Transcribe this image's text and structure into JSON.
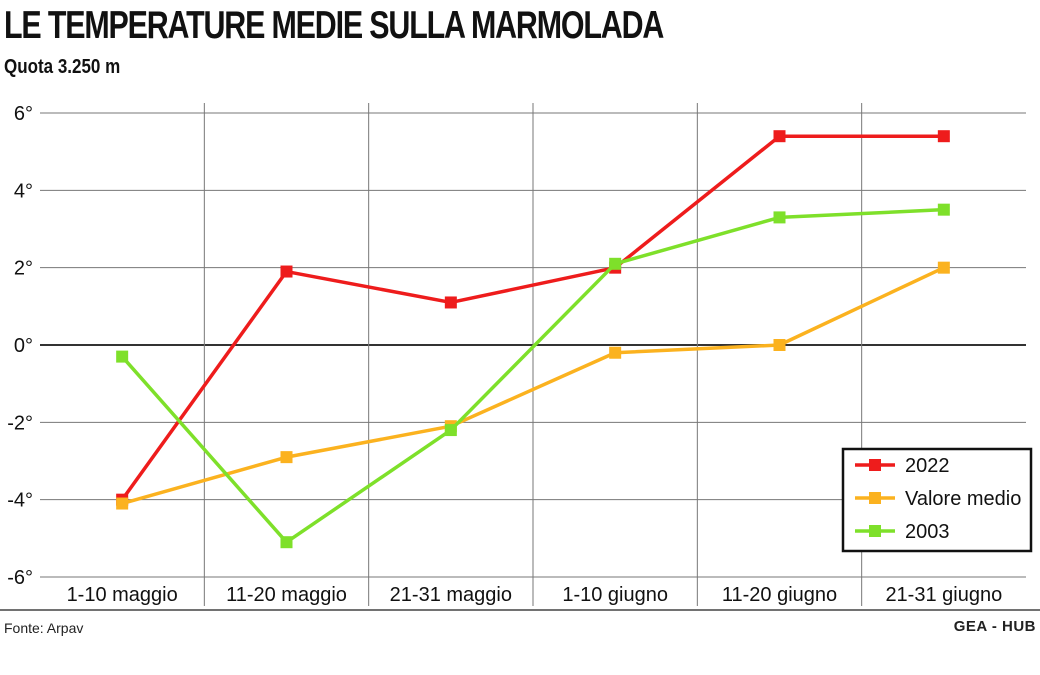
{
  "chart_data": {
    "type": "line",
    "title": "LE TEMPERATURE MEDIE SULLA MARMOLADA",
    "subtitle": "Quota 3.250 m",
    "categories": [
      "1-10 maggio",
      "11-20 maggio",
      "21-31 maggio",
      "1-10 giugno",
      "11-20 giugno",
      "21-31 giugno"
    ],
    "yticks": [
      "6°",
      "4°",
      "2°",
      "0°",
      "-2°",
      "-4°",
      "-6°"
    ],
    "ylim": [
      -6,
      6
    ],
    "grid": true,
    "legend_position": "bottom-right",
    "series": [
      {
        "name": "2022",
        "color": "#ee1c1c",
        "values": [
          -4.0,
          1.9,
          1.1,
          2.0,
          5.4,
          5.4
        ]
      },
      {
        "name": "Valore medio",
        "color": "#fbb21f",
        "values": [
          -4.1,
          -2.9,
          -2.1,
          -0.2,
          0.0,
          2.0
        ]
      },
      {
        "name": "2003",
        "color": "#7ee02a",
        "values": [
          -0.3,
          -5.1,
          -2.2,
          2.1,
          3.3,
          3.5
        ]
      }
    ]
  },
  "footer": {
    "source": "Fonte: Arpav",
    "credit": "GEA - HUB"
  }
}
